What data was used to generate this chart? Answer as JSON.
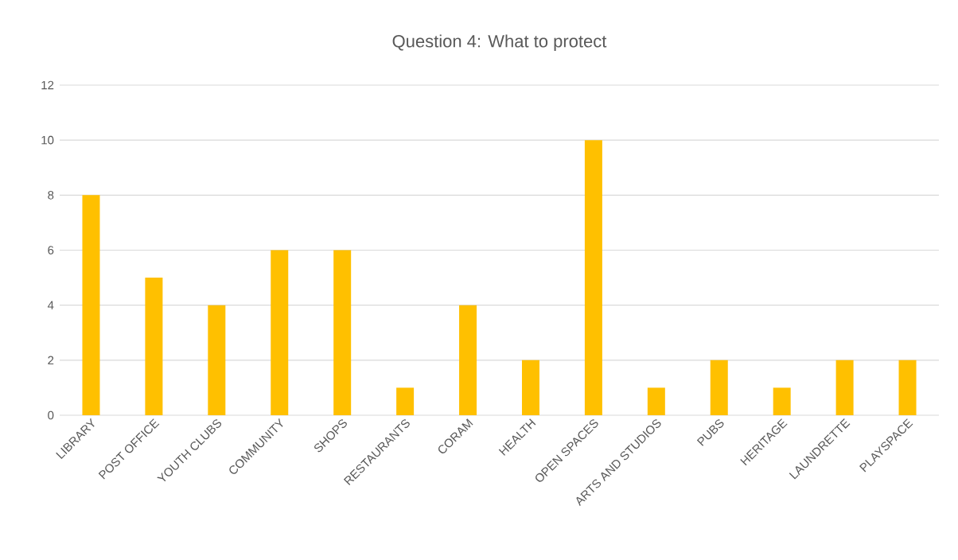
{
  "chart_data": {
    "type": "bar",
    "title": "Question 4: What to protect",
    "categories": [
      "LIBRARY",
      "POST OFFICE",
      "YOUTH CLUBS",
      "COMMUNITY",
      "SHOPS",
      "RESTAURANTS",
      "CORAM",
      "HEALTH",
      "OPEN SPACES",
      "ARTS AND STUDIOS",
      "PUBS",
      "HERITAGE",
      "LAUNDRETTE",
      "PLAYSPACE"
    ],
    "values": [
      8,
      5,
      4,
      6,
      6,
      1,
      4,
      2,
      10,
      1,
      2,
      1,
      2,
      2
    ],
    "color": "#ffc000",
    "ylim": [
      0,
      12
    ],
    "yticks": [
      0,
      2,
      4,
      6,
      8,
      10,
      12
    ],
    "grid": "y"
  }
}
